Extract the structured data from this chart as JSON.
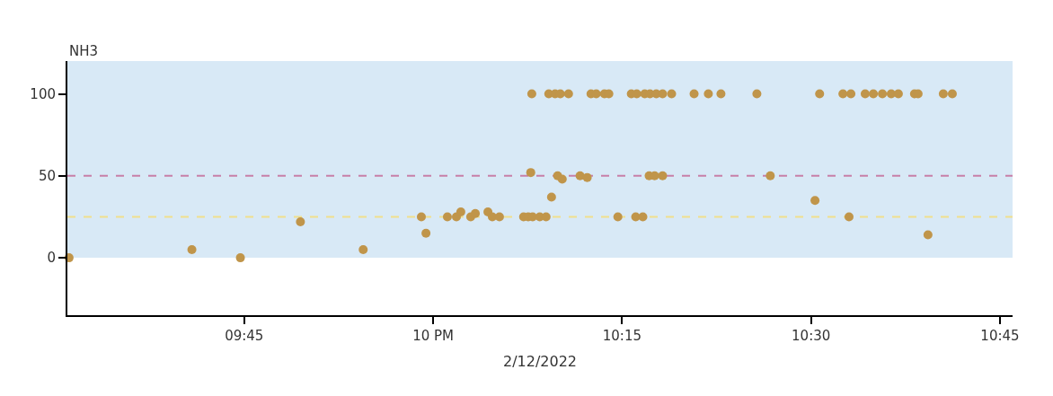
{
  "chart_data": {
    "type": "scatter",
    "ylabel": "NH3",
    "xlabel": "2/12/2022",
    "x": [
      "2022-02-12T09:31:06",
      "2022-02-12T09:40:51",
      "2022-02-12T09:44:42",
      "2022-02-12T09:49:28",
      "2022-02-12T09:54:27",
      "2022-02-12T09:59:04",
      "2022-02-12T09:59:26",
      "2022-02-12T10:01:08",
      "2022-02-12T10:01:51",
      "2022-02-12T10:02:12",
      "2022-02-12T10:02:59",
      "2022-02-12T10:03:21",
      "2022-02-12T10:04:21",
      "2022-02-12T10:04:42",
      "2022-02-12T10:05:16",
      "2022-02-12T10:07:11",
      "2022-02-12T10:07:33",
      "2022-02-12T10:07:54",
      "2022-02-12T10:08:28",
      "2022-02-12T10:08:58",
      "2022-02-12T10:07:45",
      "2022-02-12T10:09:24",
      "2022-02-12T10:09:53",
      "2022-02-12T10:10:15",
      "2022-02-12T10:11:40",
      "2022-02-12T10:12:14",
      "2022-02-12T10:14:40",
      "2022-02-12T10:16:05",
      "2022-02-12T10:16:39",
      "2022-02-12T10:17:09",
      "2022-02-12T10:17:35",
      "2022-02-12T10:18:13",
      "2022-02-12T10:07:50",
      "2022-02-12T10:09:11",
      "2022-02-12T10:09:41",
      "2022-02-12T10:10:06",
      "2022-02-12T10:10:45",
      "2022-02-12T10:12:32",
      "2022-02-12T10:12:57",
      "2022-02-12T10:13:36",
      "2022-02-12T10:13:57",
      "2022-02-12T10:15:44",
      "2022-02-12T10:16:10",
      "2022-02-12T10:16:48",
      "2022-02-12T10:17:13",
      "2022-02-12T10:17:43",
      "2022-02-12T10:18:13",
      "2022-02-12T10:18:56",
      "2022-02-12T10:20:43",
      "2022-02-12T10:21:51",
      "2022-02-12T10:22:51",
      "2022-02-12T10:25:42",
      "2022-02-12T10:30:41",
      "2022-02-12T10:32:32",
      "2022-02-12T10:33:10",
      "2022-02-12T10:34:18",
      "2022-02-12T10:34:57",
      "2022-02-12T10:35:40",
      "2022-02-12T10:36:22",
      "2022-02-12T10:36:56",
      "2022-02-12T10:38:13",
      "2022-02-12T10:38:30",
      "2022-02-12T10:40:30",
      "2022-02-12T10:41:13",
      "2022-02-12T10:26:46",
      "2022-02-12T10:30:19",
      "2022-02-12T10:33:01",
      "2022-02-12T10:39:17"
    ],
    "series": [
      {
        "color": "#c0954a",
        "values": [
          0,
          5,
          0,
          22,
          5,
          25,
          15,
          25,
          25,
          28,
          25,
          27,
          28,
          25,
          25,
          25,
          25,
          25,
          25,
          25,
          52,
          37,
          50,
          48,
          50,
          49,
          25,
          25,
          25,
          50,
          50,
          50,
          100,
          100,
          100,
          100,
          100,
          100,
          100,
          100,
          100,
          100,
          100,
          100,
          100,
          100,
          100,
          100,
          100,
          100,
          100,
          100,
          100,
          100,
          100,
          100,
          100,
          100,
          100,
          100,
          100,
          100,
          100,
          100,
          50,
          35,
          25,
          14
        ]
      }
    ],
    "xlim": [
      "2022-02-12T09:30:58",
      "2022-02-12T10:46:00"
    ],
    "xticks": [
      {
        "value": "2022-02-12T09:45",
        "label": "09:45"
      },
      {
        "value": "2022-02-12T10:00",
        "label": "10 PM"
      },
      {
        "value": "2022-02-12T10:15",
        "label": "10:15"
      },
      {
        "value": "2022-02-12T10:30",
        "label": "10:30"
      },
      {
        "value": "2022-02-12T10:45",
        "label": "10:45"
      }
    ],
    "ylim": [
      -35,
      120
    ],
    "yticks": [
      0,
      50,
      100
    ],
    "bands": [
      {
        "axis": "y",
        "from": 0,
        "to": 120,
        "color": "#d8e9f6"
      }
    ],
    "ref_lines": [
      {
        "axis": "y",
        "value": 50,
        "color": "#c77fa8",
        "line_style": "dashed"
      },
      {
        "axis": "y",
        "value": 25,
        "color": "#f0e08c",
        "line_style": "dashed"
      }
    ],
    "marker": "circle",
    "grid": false
  }
}
